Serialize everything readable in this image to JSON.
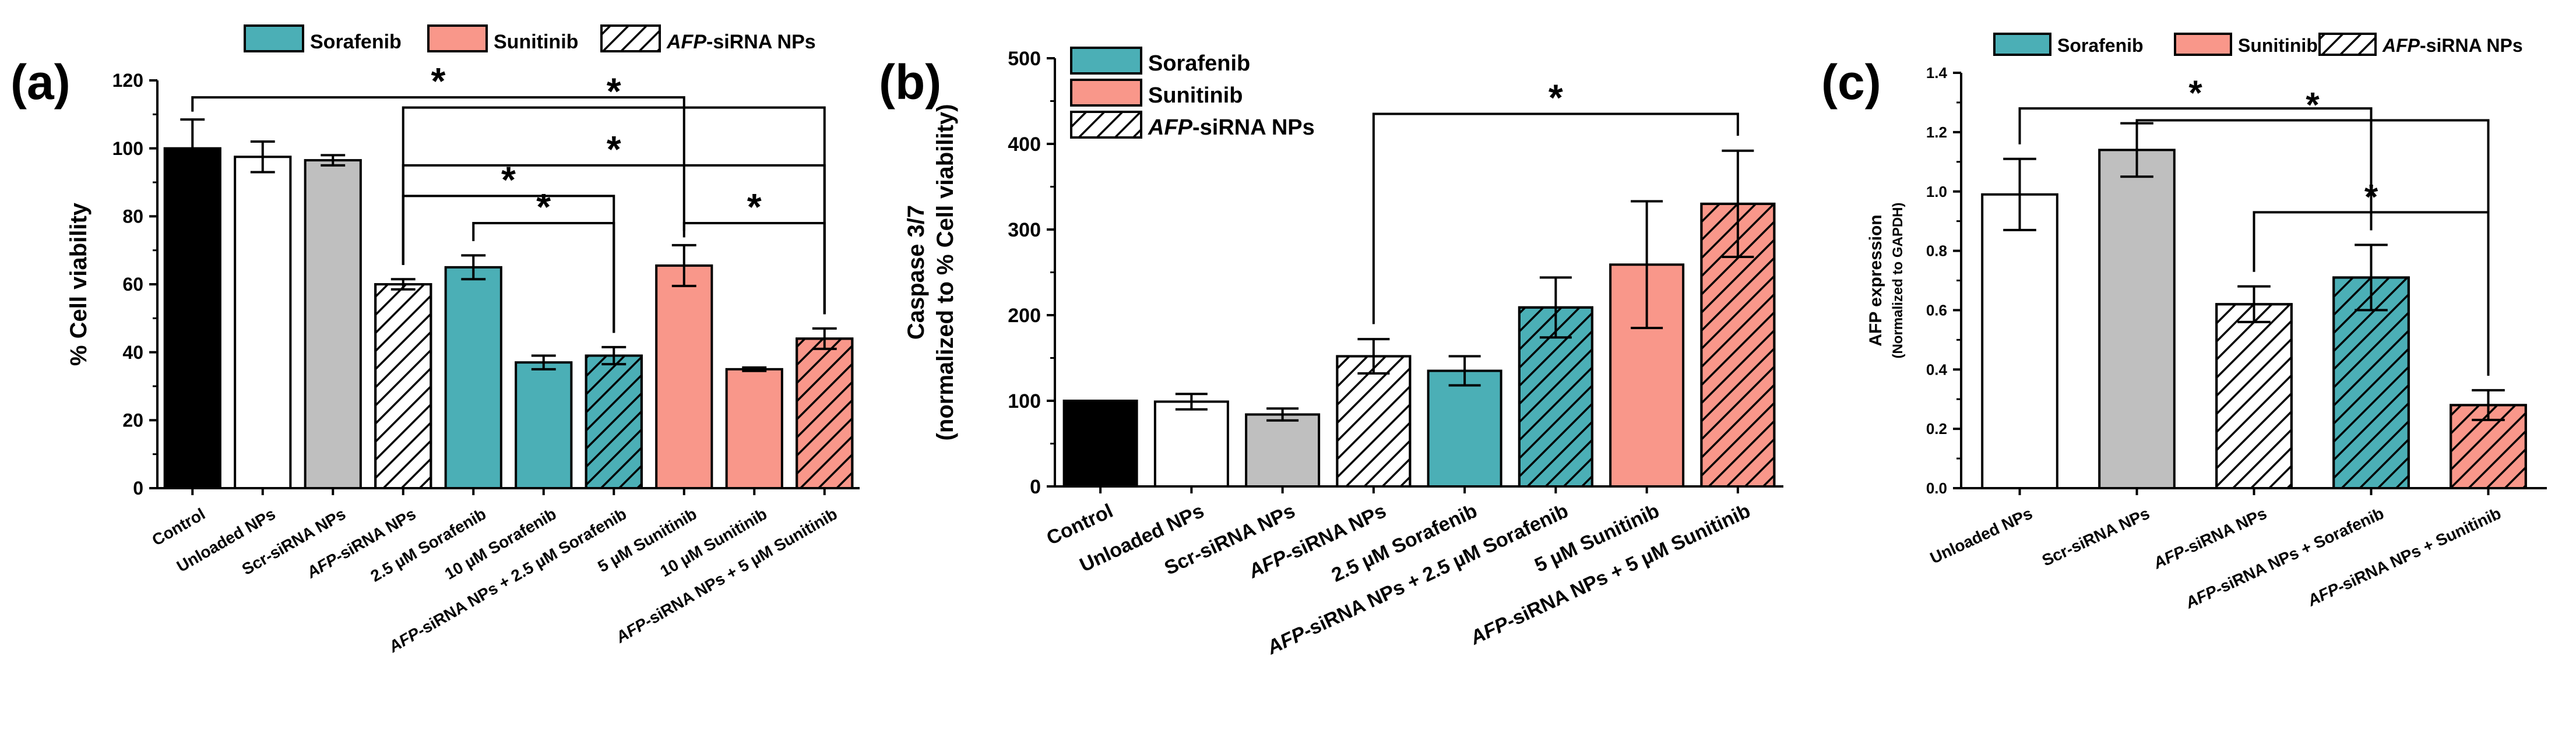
{
  "colors": {
    "control": "#000000",
    "unloaded": "#ffffff",
    "scr": "#bfbfbf",
    "sorafenib": "#4bafb6",
    "sunitinib": "#f9978a",
    "hatch": "#000000",
    "axis": "#000000"
  },
  "legend_labels": {
    "sorafenib": "Sorafenib",
    "sunitinib": "Sunitinib",
    "afp_italic": "AFP",
    "afp_rest": "-siRNA NPs"
  },
  "significance_mark": "*",
  "chart_data": [
    {
      "type": "bar",
      "panel_label": "(a)",
      "ylabel": "% Cell viability",
      "ylim": [
        0,
        120
      ],
      "yticks": [
        "0",
        "20",
        "40",
        "60",
        "80",
        "100",
        "120"
      ],
      "grid": false,
      "legend_placement": "top",
      "categories": [
        {
          "italic": "",
          "text": "Control"
        },
        {
          "italic": "",
          "text": "Unloaded NPs"
        },
        {
          "italic": "",
          "text": "Scr-siRNA NPs"
        },
        {
          "italic": "AFP",
          "text": "-siRNA NPs"
        },
        {
          "italic": "",
          "text": "2.5  µM Sorafenib"
        },
        {
          "italic": "",
          "text": "10 µM Sorafenib"
        },
        {
          "italic": "AFP",
          "text": "-siRNA NPs + 2.5 µM Sorafenib"
        },
        {
          "italic": "",
          "text": "5 µM Sunitinib"
        },
        {
          "italic": "",
          "text": "10 µM Sunitinib"
        },
        {
          "italic": "AFP",
          "text": "-siRNA NPs + 5 µM Sunitinib"
        }
      ],
      "values": [
        100,
        97.5,
        96.5,
        60,
        65,
        37,
        39,
        65.5,
        35,
        44
      ],
      "errors": [
        8.5,
        4.5,
        1.5,
        1.5,
        3.5,
        2,
        2.5,
        6,
        0.5,
        3
      ],
      "styles": [
        "control",
        "unloaded",
        "scr",
        "afp",
        "sorafenib",
        "sorafenib",
        "sorafenib_afp",
        "sunitinib",
        "sunitinib",
        "sunitinib_afp"
      ],
      "significance": [
        {
          "from": 0,
          "to": 7,
          "y": 115,
          "mark": "*"
        },
        {
          "from": 3,
          "to": 9,
          "y": 112,
          "mark": "*"
        },
        {
          "from": 3,
          "to": 9,
          "y": 95,
          "mark": "*"
        },
        {
          "from": 3,
          "to": 6,
          "y": 86,
          "mark": "*"
        },
        {
          "from": 4,
          "to": 6,
          "y": 78,
          "mark": "*"
        },
        {
          "from": 7,
          "to": 9,
          "y": 78,
          "mark": "*"
        }
      ]
    },
    {
      "type": "bar",
      "panel_label": "(b)",
      "ylabel": "Caspase 3/7",
      "ylabel2": "(normalized to % Cell viability)",
      "ylim": [
        0,
        500
      ],
      "yticks": [
        "0",
        "100",
        "200",
        "300",
        "400",
        "500"
      ],
      "grid": false,
      "legend_placement": "top-left",
      "categories": [
        {
          "italic": "",
          "text": "Control"
        },
        {
          "italic": "",
          "text": "Unloaded NPs"
        },
        {
          "italic": "",
          "text": "Scr-siRNA NPs"
        },
        {
          "italic": "AFP",
          "text": "-siRNA NPs"
        },
        {
          "italic": "",
          "text": "2.5  µM Sorafenib"
        },
        {
          "italic": "AFP",
          "text": "-siRNA NPs + 2.5 µM Sorafenib"
        },
        {
          "italic": "",
          "text": "5 µM Sunitinib"
        },
        {
          "italic": "AFP",
          "text": "-siRNA NPs + 5 µM Sunitinib"
        }
      ],
      "values": [
        100,
        99,
        84,
        152,
        135,
        209,
        259,
        330
      ],
      "errors": [
        0,
        9,
        7,
        20,
        17,
        35,
        74,
        62
      ],
      "styles": [
        "control",
        "unloaded",
        "scr",
        "afp",
        "sorafenib",
        "sorafenib_afp",
        "sunitinib",
        "sunitinib_afp"
      ],
      "significance": [
        {
          "from": 3,
          "to": 7,
          "y": 435,
          "mark": "*"
        }
      ]
    },
    {
      "type": "bar",
      "panel_label": "(c)",
      "ylabel": "AFP expression",
      "ylabel2": "(Normalized to GAPDH)",
      "ylim": [
        0,
        1.4
      ],
      "yticks": [
        "0.0",
        "0.2",
        "0.4",
        "0.6",
        "0.8",
        "1.0",
        "1.2",
        "1.4"
      ],
      "grid": false,
      "legend_placement": "top",
      "categories": [
        {
          "italic": "",
          "text": "Unloaded NPs"
        },
        {
          "italic": "",
          "text": "Scr-siRNA NPs"
        },
        {
          "italic": "AFP",
          "text": "-siRNA NPs"
        },
        {
          "italic": "AFP",
          "text": "-siRNA NPs + Sorafenib"
        },
        {
          "italic": "AFP",
          "text": "-siRNA NPs + Sunitinib"
        }
      ],
      "values": [
        0.99,
        1.14,
        0.62,
        0.71,
        0.28
      ],
      "errors": [
        0.12,
        0.09,
        0.06,
        0.11,
        0.05
      ],
      "styles": [
        "unloaded",
        "scr",
        "afp",
        "sorafenib_afp",
        "sunitinib_afp"
      ],
      "significance": [
        {
          "from": 0,
          "to": 3,
          "y": 1.28,
          "mark": "*"
        },
        {
          "from": 1,
          "to": 4,
          "y": 1.24,
          "mark": "*"
        },
        {
          "from": 2,
          "to": 4,
          "y": 0.93,
          "mark": "*"
        }
      ]
    }
  ]
}
